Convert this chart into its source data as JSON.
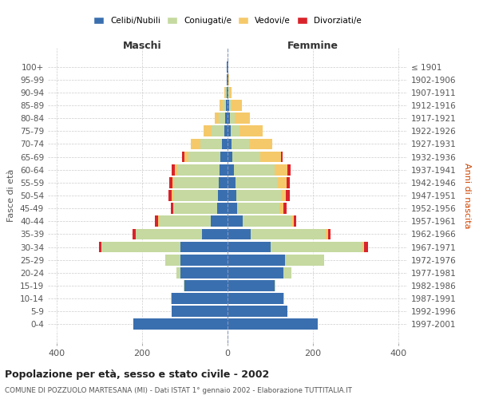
{
  "age_groups": [
    "0-4",
    "5-9",
    "10-14",
    "15-19",
    "20-24",
    "25-29",
    "30-34",
    "35-39",
    "40-44",
    "45-49",
    "50-54",
    "55-59",
    "60-64",
    "65-69",
    "70-74",
    "75-79",
    "80-84",
    "85-89",
    "90-94",
    "95-99",
    "100+"
  ],
  "birth_years": [
    "1997-2001",
    "1992-1996",
    "1987-1991",
    "1982-1986",
    "1977-1981",
    "1972-1976",
    "1967-1971",
    "1962-1966",
    "1957-1961",
    "1952-1956",
    "1947-1951",
    "1942-1946",
    "1937-1941",
    "1932-1936",
    "1927-1931",
    "1922-1926",
    "1917-1921",
    "1912-1916",
    "1907-1911",
    "1902-1906",
    "≤ 1901"
  ],
  "maschi": {
    "celibi": [
      220,
      130,
      130,
      100,
      110,
      110,
      110,
      60,
      40,
      25,
      22,
      20,
      18,
      16,
      14,
      8,
      5,
      3,
      2,
      1,
      1
    ],
    "coniugati": [
      0,
      0,
      2,
      2,
      10,
      35,
      185,
      155,
      120,
      100,
      105,
      105,
      100,
      75,
      50,
      30,
      15,
      8,
      3,
      1,
      0
    ],
    "vedovi": [
      0,
      0,
      0,
      0,
      0,
      0,
      0,
      0,
      2,
      2,
      3,
      4,
      5,
      10,
      22,
      18,
      10,
      8,
      2,
      0,
      0
    ],
    "divorziati": [
      0,
      0,
      0,
      0,
      0,
      0,
      5,
      8,
      8,
      6,
      8,
      8,
      8,
      5,
      0,
      0,
      0,
      0,
      0,
      0,
      0
    ]
  },
  "femmine": {
    "nubili": [
      210,
      140,
      130,
      110,
      130,
      135,
      100,
      55,
      35,
      22,
      20,
      18,
      15,
      12,
      10,
      8,
      5,
      4,
      2,
      1,
      1
    ],
    "coniugate": [
      0,
      0,
      2,
      2,
      20,
      90,
      215,
      175,
      115,
      100,
      105,
      100,
      95,
      65,
      40,
      20,
      12,
      5,
      3,
      1,
      0
    ],
    "vedove": [
      0,
      0,
      0,
      0,
      0,
      0,
      5,
      5,
      5,
      8,
      12,
      20,
      30,
      48,
      55,
      55,
      35,
      25,
      5,
      1,
      0
    ],
    "divorziate": [
      0,
      0,
      0,
      0,
      0,
      0,
      8,
      5,
      5,
      8,
      8,
      8,
      8,
      3,
      0,
      0,
      0,
      0,
      0,
      0,
      0
    ]
  },
  "colors": {
    "celibi": "#3a6faf",
    "coniugati": "#c5d9a0",
    "vedovi": "#f5c96a",
    "divorziati": "#d9232a"
  },
  "xlim": 420,
  "xlabel_ticks": [
    -400,
    -200,
    0,
    200,
    400
  ],
  "xlabel_labels": [
    "400",
    "200",
    "0",
    "200",
    "400"
  ],
  "title": "Popolazione per età, sesso e stato civile - 2002",
  "subtitle": "COMUNE DI POZZUOLO MARTESANA (MI) - Dati ISTAT 1° gennaio 2002 - Elaborazione TUTTITALIA.IT",
  "ylabel_left": "Fasce di età",
  "ylabel_right": "Anni di nascita",
  "label_maschi": "Maschi",
  "label_femmine": "Femmine",
  "legend_labels": [
    "Celibi/Nubili",
    "Coniugati/e",
    "Vedovi/e",
    "Divorziati/e"
  ],
  "bg_color": "#ffffff",
  "grid_color": "#cccccc"
}
